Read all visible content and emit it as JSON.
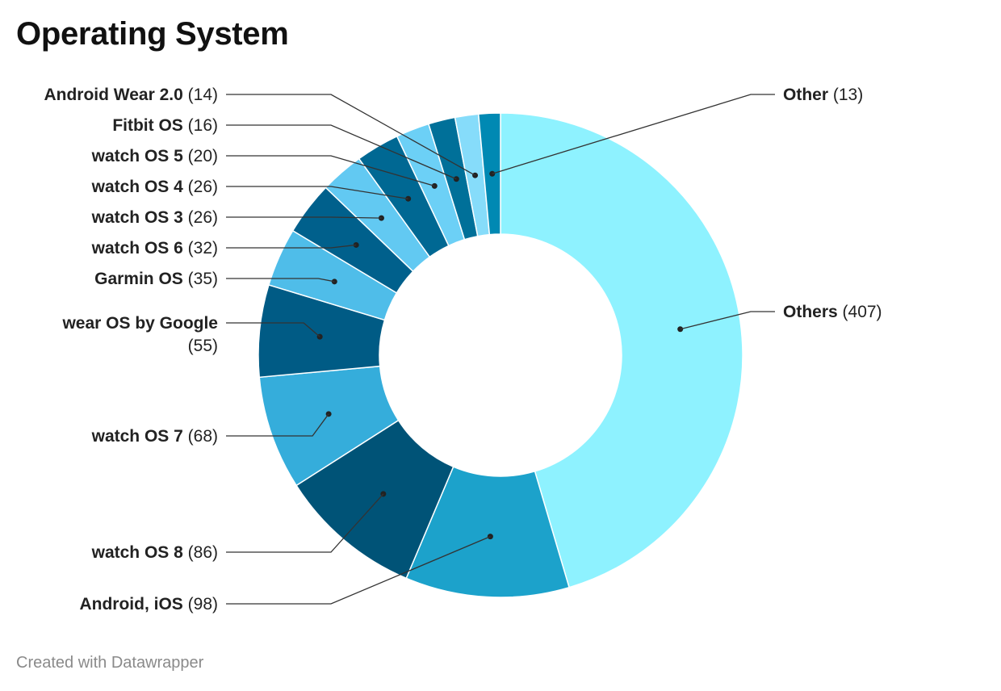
{
  "title": "Operating System",
  "credit": "Created with Datawrapper",
  "chart_data": {
    "type": "pie",
    "donut": true,
    "title": "Operating System",
    "slices": [
      {
        "label": "Others",
        "value": 407,
        "color": "#8ef2ff"
      },
      {
        "label": "Android, iOS",
        "value": 98,
        "color": "#1ca2cb"
      },
      {
        "label": "watch OS 8",
        "value": 86,
        "color": "#005377"
      },
      {
        "label": "watch OS 7",
        "value": 68,
        "color": "#35addb"
      },
      {
        "label": "wear OS by Google",
        "value": 55,
        "color": "#005b85"
      },
      {
        "label": "Garmin OS",
        "value": 35,
        "color": "#4fbde9"
      },
      {
        "label": "watch OS 6",
        "value": 32,
        "color": "#00608c"
      },
      {
        "label": "watch OS 3",
        "value": 26,
        "color": "#62c9f2"
      },
      {
        "label": "watch OS 4",
        "value": 26,
        "color": "#006893"
      },
      {
        "label": "watch OS 5",
        "value": 20,
        "color": "#6cd0f6"
      },
      {
        "label": "Fitbit OS",
        "value": 16,
        "color": "#007099"
      },
      {
        "label": "Android Wear 2.0",
        "value": 14,
        "color": "#86dcfa"
      },
      {
        "label": "Other",
        "value": 13,
        "color": "#0089b3"
      }
    ]
  }
}
